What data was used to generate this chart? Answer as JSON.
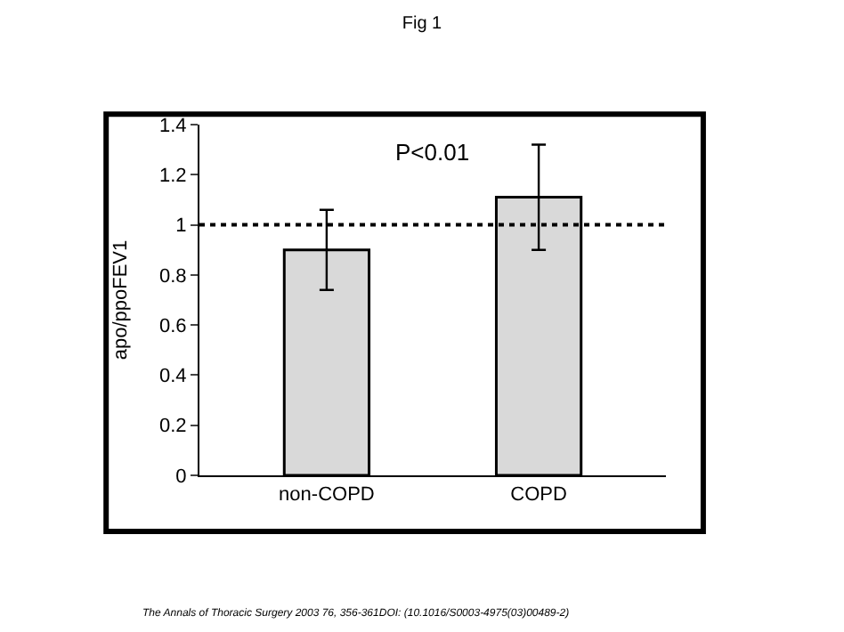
{
  "chart_data": {
    "type": "bar",
    "title": "Fig 1",
    "ylabel": "apo/ppoFEV1",
    "categories": [
      "non-COPD",
      "COPD"
    ],
    "values": [
      0.9,
      1.11
    ],
    "errors": [
      0.16,
      0.21
    ],
    "color": "#d9d9d9",
    "ylim": [
      0,
      1.4
    ],
    "yticks": [
      0,
      0.2,
      0.4,
      0.6,
      0.8,
      1,
      1.2,
      1.4
    ],
    "legend": false,
    "ref_lines": [
      {
        "axis": "y",
        "value": 1,
        "line_style": "dotted",
        "color": "#000000"
      }
    ],
    "annotations": [
      "P<0.01",
      "The Annals of Thoracic Surgery 2003 76, 356-361DOI: (10.1016/S0003-4975(03)00489-2)"
    ]
  }
}
